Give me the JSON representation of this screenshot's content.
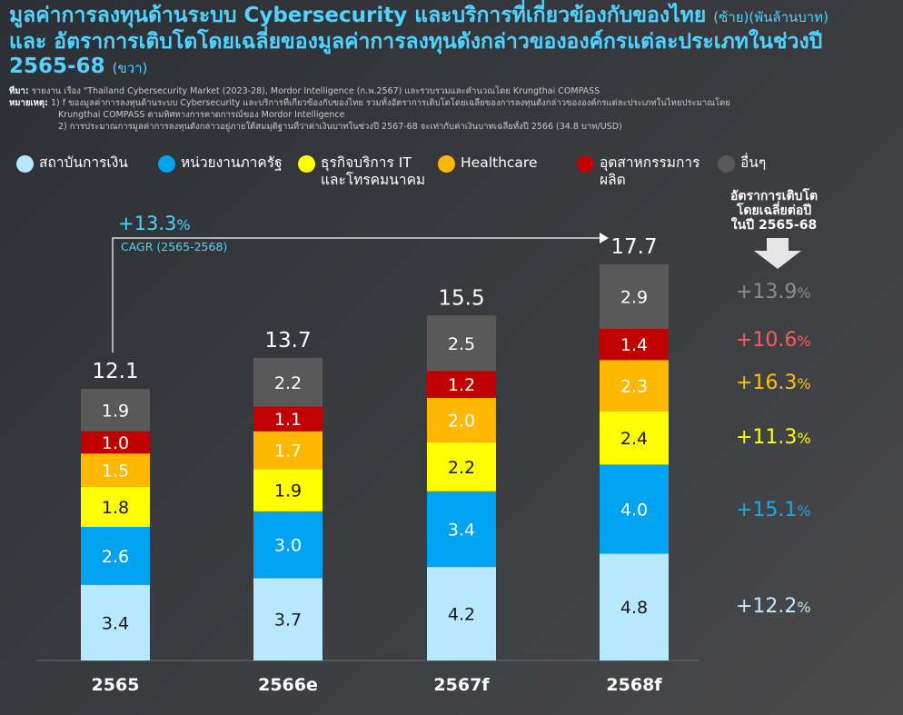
{
  "title": {
    "line1": "มูลค่าการลงทุนด้านระบบ Cybersecurity และบริการที่เกี่ยวข้องกับของไทย",
    "line1_note": "(ซ้าย)(พันล้านบาท)",
    "line2": "และ อัตราการเติบโตโดยเฉลี่ยของมูลค่าการลงทุนดังกล่าวขององค์กรแต่ละประเภทในช่วงปี",
    "line3": "2565-68",
    "line3_note": "(ขวา)"
  },
  "notes": {
    "source_label": "ที่มา:",
    "source_text": "รายงาน เรื่อง \"Thailand Cybersecurity Market (2023-28), Mordor Intelligence (ก.พ.2567) และรวบรวมและคำนวณโดย Krungthai COMPASS",
    "remark_label": "หมายเหตุ:",
    "remark1": "1) f ของมูลค่าการลงทุนด้านระบบ Cybersecurity และบริการที่เกี่ยวข้องกับของไทย รวมทั้งอัตราการเติบโตโดยเฉลี่ยของการลงทุนดังกล่าวขององค์กรแต่ละประเภทในไทยประมาณโดย",
    "remark1b": "Krungthai COMPASS ตามทิศทางการคาดการณ์ของ Mordor Intelligence",
    "remark2": "2) การประมาณการมูลค่าการลงทุนดังกล่าวอยู่ภายใต้สมมุติฐานที่ว่าค่าเงินบาทในช่วงปี 2567-68 จะเท่ากับค่าเงินบาทเฉลี่ยทั้งปี 2566 (34.8 บาท/USD)"
  },
  "cagr": {
    "value": "+13.3",
    "unit": "%",
    "label": "CAGR (2565-2568)"
  },
  "side": {
    "heading_lines": [
      "อัตราการเติบโต",
      "โดยเฉลี่ยต่อปี",
      "ในปี 2565-68"
    ],
    "rates": [
      {
        "series": "อื่นๆ",
        "value": "+13.9",
        "unit": "%",
        "color": "#8c8c8c"
      },
      {
        "series": "อุตสาหกรรมการผลิต",
        "value": "+10.6",
        "unit": "%",
        "color": "#ff5a5a"
      },
      {
        "series": "Healthcare",
        "value": "+16.3",
        "unit": "%",
        "color": "#ffc000"
      },
      {
        "series": "ธุรกิจบริการ IT และโทรคมนาคม",
        "value": "+11.3",
        "unit": "%",
        "color": "#ffff00"
      },
      {
        "series": "หน่วยงานภาครัฐ",
        "value": "+15.1",
        "unit": "%",
        "color": "#1aa7ec"
      },
      {
        "series": "สถาบันการเงิน",
        "value": "+12.2",
        "unit": "%",
        "color": "#bde9ff"
      }
    ]
  },
  "chart_data": {
    "type": "bar",
    "stacked": true,
    "categories": [
      "2565",
      "2566e",
      "2567f",
      "2568f"
    ],
    "totals": [
      "12.1",
      "13.7",
      "15.5",
      "17.7"
    ],
    "series": [
      {
        "name": "สถาบันการเงิน",
        "color": "#b7e8ff",
        "label_color": "#1a1a1a",
        "values": [
          3.4,
          3.7,
          4.2,
          4.8
        ]
      },
      {
        "name": "หน่วยงานภาครัฐ",
        "color": "#00a3ef",
        "label_color": "#ffffff",
        "values": [
          2.6,
          3.0,
          3.4,
          4.0
        ]
      },
      {
        "name": "ธุรกิจบริการ IT และโทรคมนาคม",
        "color": "#ffff00",
        "label_color": "#1a1a1a",
        "values": [
          1.8,
          1.9,
          2.2,
          2.4
        ]
      },
      {
        "name": "Healthcare",
        "color": "#ffb800",
        "label_color": "#ffffff",
        "values": [
          1.5,
          1.7,
          2.0,
          2.3
        ]
      },
      {
        "name": "อุตสาหกรรมการผลิต",
        "color": "#c00000",
        "label_color": "#ffffff",
        "values": [
          1.0,
          1.1,
          1.2,
          1.4
        ]
      },
      {
        "name": "อื่นๆ",
        "color": "#595959",
        "label_color": "#ffffff",
        "values": [
          1.9,
          2.2,
          2.5,
          2.9
        ]
      }
    ],
    "legend": "top",
    "grid": false
  }
}
